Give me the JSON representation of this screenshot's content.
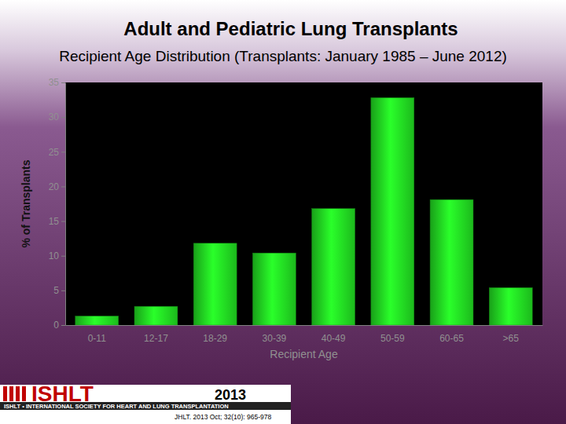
{
  "chart_data": {
    "type": "bar",
    "title": "Adult and Pediatric Lung Transplants",
    "subtitle": "Recipient Age Distribution (Transplants: January 1985 – June 2012)",
    "x_label": "Recipient Age",
    "y_label": "% of Transplants",
    "categories": [
      "0-11",
      "12-17",
      "18-29",
      "30-39",
      "40-49",
      "50-59",
      "60-65",
      ">65"
    ],
    "values": [
      1.3,
      2.7,
      11.8,
      10.4,
      16.8,
      32.8,
      18.1,
      5.4
    ],
    "color": "#22dd22",
    "ylim": [
      0,
      35
    ],
    "yticks": [
      0,
      5,
      10,
      15,
      20,
      25,
      30,
      35
    ],
    "grid": false,
    "annotations": [
      "ISHLT",
      "2013",
      "ISHLT • INTERNATIONAL SOCIETY FOR HEART AND LUNG TRANSPLANTATION",
      "JHLT. 2013 Oct; 32(10): 965-978"
    ]
  }
}
